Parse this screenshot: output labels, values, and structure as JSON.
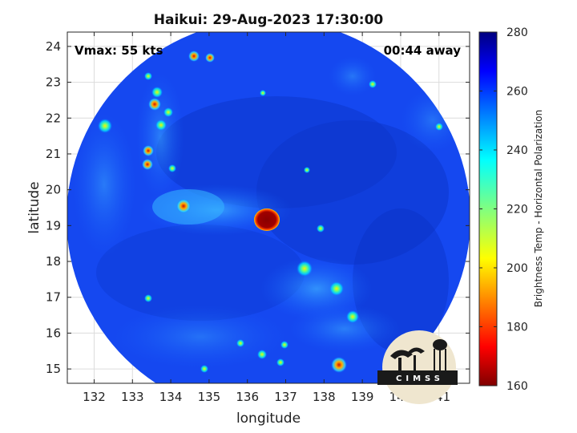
{
  "chart_data": {
    "type": "heatmap",
    "title": "Haikui: 29-Aug-2023 17:30:00",
    "xlabel": "longitude",
    "ylabel": "latitude",
    "xlim": [
      131.3,
      141.8
    ],
    "ylim": [
      14.6,
      24.4
    ],
    "xticks": [
      "132",
      "133",
      "134",
      "135",
      "136",
      "137",
      "138",
      "139",
      "140",
      "141"
    ],
    "yticks": [
      "15",
      "16",
      "17",
      "18",
      "19",
      "20",
      "21",
      "22",
      "23",
      "24"
    ],
    "grid": true,
    "colorbar": {
      "label": "Brightness Temp - Horizontal Polarization",
      "min": 160,
      "max": 280,
      "ticks": [
        "160",
        "180",
        "200",
        "220",
        "240",
        "260",
        "280"
      ],
      "colormap": "jet"
    },
    "storm_center": {
      "lon": 136.4,
      "lat": 19.0,
      "min_temp": 160
    },
    "annotations": {
      "vmax": "Vmax: 55 kts",
      "time_offset": "00:44 away"
    }
  },
  "logo": {
    "text": "CIMSS"
  }
}
